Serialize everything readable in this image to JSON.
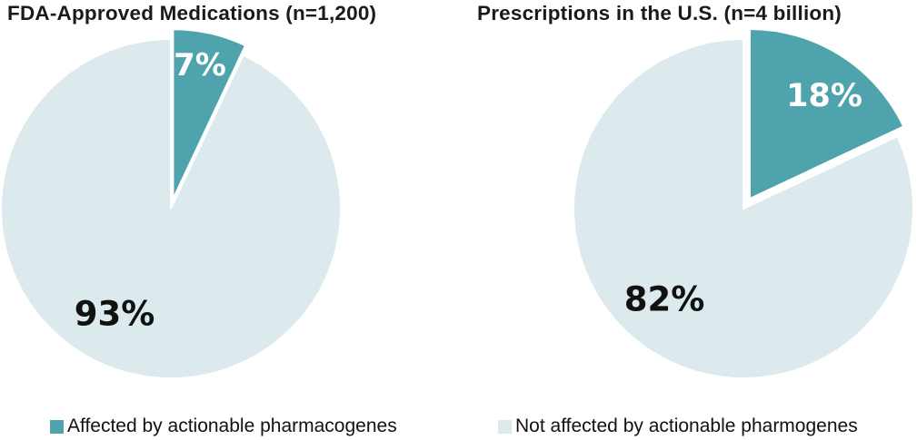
{
  "chart_data": [
    {
      "type": "pie",
      "title": "FDA-Approved Medications (n=1,200)",
      "labels": [
        "Affected by actionable pharmacogenes",
        "Not affected by actionable pharmogenes"
      ],
      "values": [
        7,
        93
      ],
      "data_labels": [
        "7%",
        "93%"
      ],
      "colors": [
        "#4FA3AD",
        "#DCE9ED"
      ],
      "data_label_colors": [
        "#ffffff",
        "#111111"
      ],
      "start_angle_deg": 0,
      "direction": "clockwise",
      "exploded_slice": "Affected by actionable pharmacogenes",
      "legend_position": "bottom"
    },
    {
      "type": "pie",
      "title": "Prescriptions in the U.S. (n=4 billion)",
      "labels": [
        "Affected by actionable pharmacogenes",
        "Not affected by actionable pharmogenes"
      ],
      "values": [
        18,
        82
      ],
      "data_labels": [
        "18%",
        "82%"
      ],
      "colors": [
        "#4FA3AD",
        "#DCE9ED"
      ],
      "data_label_colors": [
        "#ffffff",
        "#111111"
      ],
      "start_angle_deg": 0,
      "direction": "clockwise",
      "exploded_slice": "Affected by actionable pharmacogenes",
      "legend_position": "bottom"
    }
  ],
  "legend": {
    "affected_color": "#4FA3AD",
    "not_affected_color": "#DCE9ED"
  }
}
